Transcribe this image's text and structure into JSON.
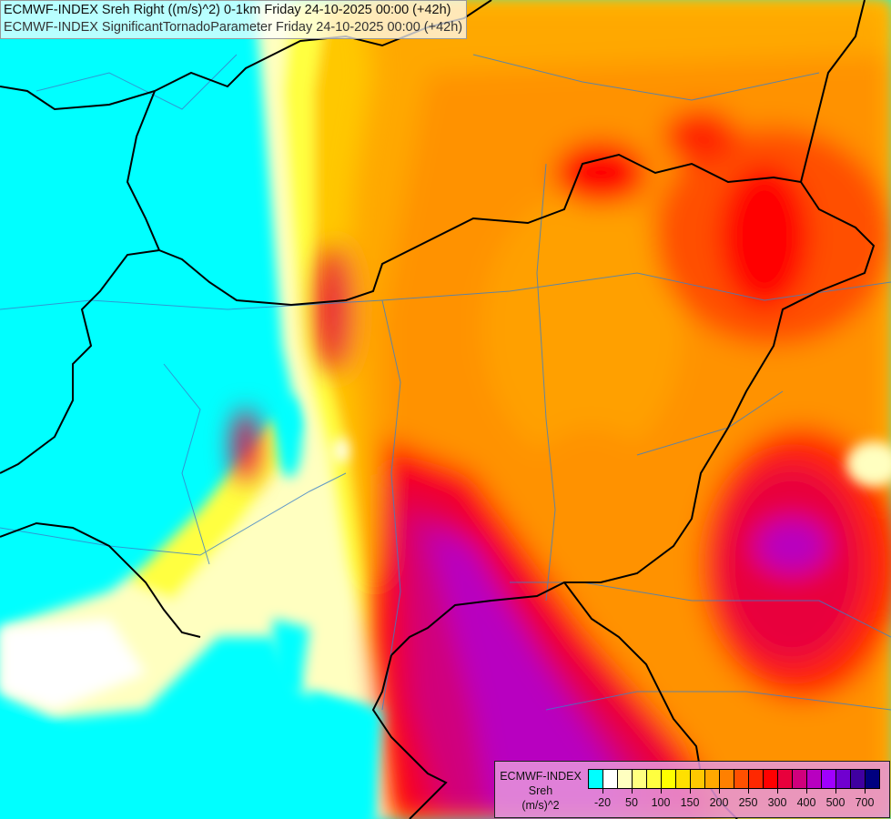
{
  "title": {
    "line1": "ECMWF-INDEX Sreh Right ((m/s)^2) 0-1km Friday 24-10-2025 00:00 (+42h)",
    "line2": "ECMWF-INDEX SignificantTornadoParameter Friday 24-10-2025 00:00 (+42h)"
  },
  "legend": {
    "title": "ECMWF-INDEX",
    "variable": "Sreh",
    "unit": "(m/s)^2",
    "colors": [
      "#00ffff",
      "#ffffff",
      "#ffffc0",
      "#ffff80",
      "#ffff40",
      "#ffff00",
      "#ffe000",
      "#ffc800",
      "#ffa800",
      "#ff8000",
      "#ff5000",
      "#ff2800",
      "#ff0000",
      "#e8003c",
      "#d0007c",
      "#b800c0",
      "#a000ff",
      "#7000d0",
      "#4000a0",
      "#000080"
    ],
    "ticks": [
      {
        "label": "-20",
        "boundary": 1
      },
      {
        "label": "50",
        "boundary": 3
      },
      {
        "label": "100",
        "boundary": 5
      },
      {
        "label": "150",
        "boundary": 7
      },
      {
        "label": "200",
        "boundary": 9
      },
      {
        "label": "250",
        "boundary": 11
      },
      {
        "label": "300",
        "boundary": 13
      },
      {
        "label": "400",
        "boundary": 15
      },
      {
        "label": "500",
        "boundary": 17
      },
      {
        "label": "700",
        "boundary": 19
      }
    ]
  },
  "map": {
    "field": "Sreh 0-1km",
    "colors": {
      "country_border": "#000000",
      "river": "#3a7fc8"
    }
  }
}
